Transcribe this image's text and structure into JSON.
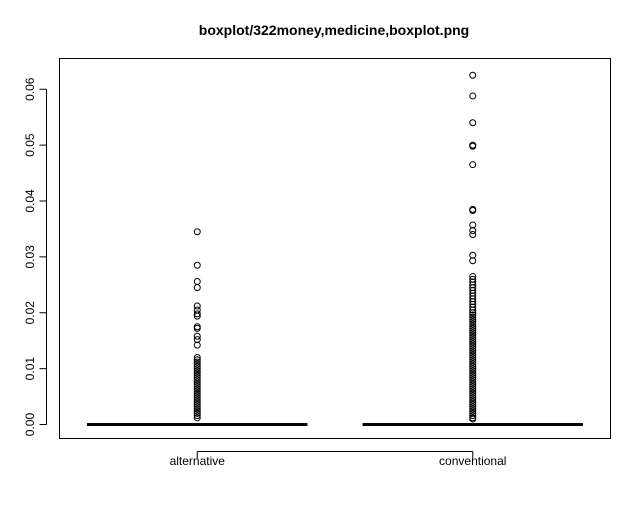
{
  "chart_data": {
    "type": "boxplot",
    "title": "boxplot/322money,medicine,boxplot.png",
    "xlabel": "",
    "ylabel": "",
    "ylim": [
      -0.0025,
      0.0655
    ],
    "yticks": [
      0.0,
      0.01,
      0.02,
      0.03,
      0.04,
      0.05,
      0.06
    ],
    "ytick_labels": [
      "0.00",
      "0.01",
      "0.02",
      "0.03",
      "0.04",
      "0.05",
      "0.06"
    ],
    "grid": false,
    "categories": [
      "alternative",
      "conventional"
    ],
    "series": [
      {
        "category": "alternative",
        "q1": 0.0,
        "median": 0.0,
        "q3": 0.0,
        "whisker_low": 0.0,
        "whisker_high": 0.0,
        "outliers": [
          0.0345,
          0.0285,
          0.0256,
          0.0245,
          0.0212,
          0.0205,
          0.0198,
          0.0194,
          0.0175,
          0.0172,
          0.0158,
          0.0152,
          0.0142,
          0.012,
          0.0116,
          0.0112,
          0.0108,
          0.0104,
          0.01,
          0.0096,
          0.0092,
          0.0088,
          0.0084,
          0.008,
          0.0076,
          0.0072,
          0.0068,
          0.0064,
          0.006,
          0.0056,
          0.0052,
          0.0048,
          0.0044,
          0.004,
          0.0036,
          0.0032,
          0.0028,
          0.0024,
          0.002,
          0.0016,
          0.0012
        ]
      },
      {
        "category": "conventional",
        "q1": 0.0,
        "median": 0.0,
        "q3": 0.0,
        "whisker_low": 0.0,
        "whisker_high": 0.0,
        "outliers": [
          0.0625,
          0.0588,
          0.054,
          0.05,
          0.0498,
          0.0465,
          0.0385,
          0.0383,
          0.0357,
          0.0347,
          0.034,
          0.0303,
          0.0293,
          0.0265,
          0.026,
          0.0255,
          0.025,
          0.0245,
          0.024,
          0.0235,
          0.023,
          0.0225,
          0.022,
          0.0215,
          0.021,
          0.0205,
          0.02,
          0.0196,
          0.0192,
          0.0188,
          0.0184,
          0.018,
          0.0176,
          0.0172,
          0.0168,
          0.0164,
          0.016,
          0.0156,
          0.0152,
          0.0148,
          0.0144,
          0.014,
          0.0136,
          0.0132,
          0.0128,
          0.0124,
          0.012,
          0.0116,
          0.0112,
          0.0108,
          0.0104,
          0.01,
          0.0096,
          0.0092,
          0.0088,
          0.0084,
          0.008,
          0.0076,
          0.0072,
          0.0068,
          0.0064,
          0.006,
          0.0056,
          0.0052,
          0.0048,
          0.0044,
          0.004,
          0.0036,
          0.0032,
          0.0028,
          0.0024,
          0.002,
          0.0016,
          0.0012,
          0.001
        ]
      }
    ]
  }
}
